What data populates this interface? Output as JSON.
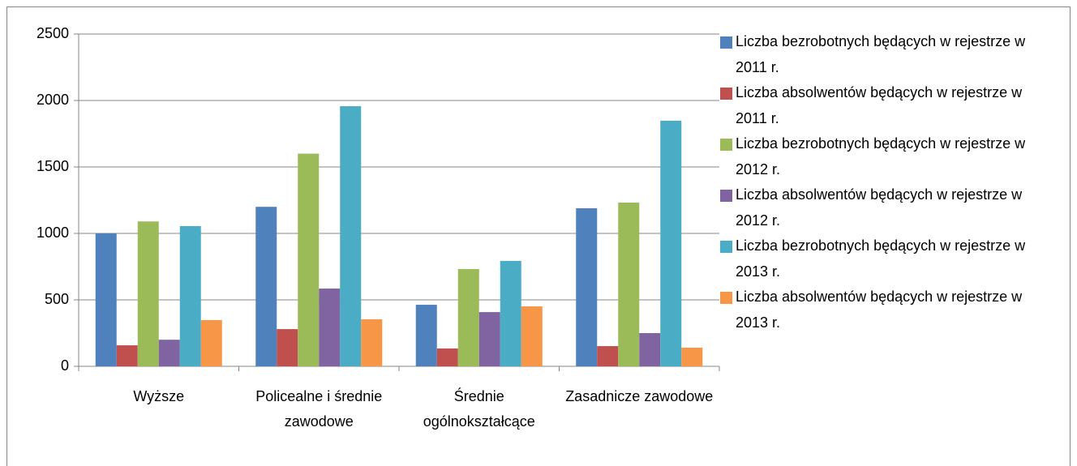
{
  "chart_data": {
    "type": "bar",
    "categories": [
      "Wyższe",
      "Policealne i średnie zawodowe",
      "Średnie ogólnokształcące",
      "Zasadnicze zawodowe"
    ],
    "series": [
      {
        "name": "Liczba bezrobotnych będących w rejestrze w 2011 r.",
        "color": "#4F81BD",
        "values": [
          1000,
          1200,
          463,
          1189
        ]
      },
      {
        "name": "Liczba absolwentów będących w rejestrze w 2011 r.",
        "color": "#C0504D",
        "values": [
          158,
          280,
          134,
          152
        ]
      },
      {
        "name": "Liczba bezrobotnych będących w rejestrze w 2012 r.",
        "color": "#9BBB59",
        "values": [
          1090,
          1600,
          732,
          1232
        ]
      },
      {
        "name": "Liczba absolwentów będących w rejestrze w 2012 r.",
        "color": "#8064A2",
        "values": [
          200,
          585,
          408,
          250
        ]
      },
      {
        "name": "Liczba bezrobotnych będących w rejestrze w 2013 r.",
        "color": "#4BACC6",
        "values": [
          1055,
          1957,
          793,
          1848
        ]
      },
      {
        "name": "Liczba absolwentów będących w rejestrze w 2013 r.",
        "color": "#F79646",
        "values": [
          348,
          354,
          451,
          140
        ]
      }
    ],
    "ylim": [
      0,
      2500
    ],
    "yticks": [
      0,
      500,
      1000,
      1500,
      2000,
      2500
    ],
    "grid": true,
    "legend": "right"
  }
}
